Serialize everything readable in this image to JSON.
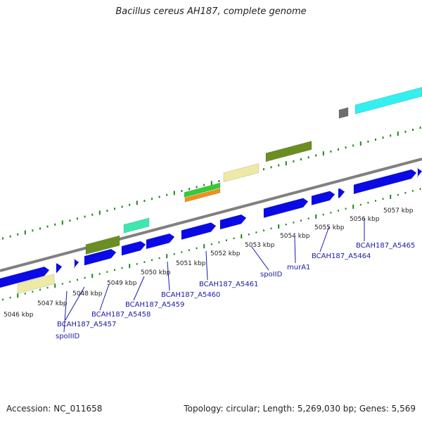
{
  "title": "Bacillus cereus AH187, complete genome",
  "footer": {
    "accession": "Accession: NC_011658",
    "summary": "Topology: circular; Length: 5,269,030 bp; Genes: 5,569"
  },
  "colors": {
    "cds": "#0a0ae6",
    "backbone": "#808080",
    "ticks": "#1a8a1a",
    "label": "#1a1aa6",
    "khaki": "#eeeaa6",
    "olive": "#6b8e23",
    "aqua": "#3de8b0",
    "cyan": "#33f0f0",
    "green": "#33cc33",
    "orange": "#f29018",
    "gray": "#6d6d6d"
  },
  "kbp_labels": [
    "5046 kbp",
    "5047 kbp",
    "5048 kbp",
    "5049 kbp",
    "5050 kbp",
    "5051 kbp",
    "5052 kbp",
    "5053 kbp",
    "5054 kbp",
    "5055 kbp",
    "5056 kbp",
    "5057 kbp"
  ],
  "gene_labels": [
    "spoIIID",
    "BCAH187_A5457",
    "BCAH187_A5458",
    "BCAH187_A5459",
    "BCAH187_A5460",
    "BCAH187_A5461",
    "spoIID",
    "murA1",
    "BCAH187_A5464",
    "BCAH187_A5465"
  ]
}
